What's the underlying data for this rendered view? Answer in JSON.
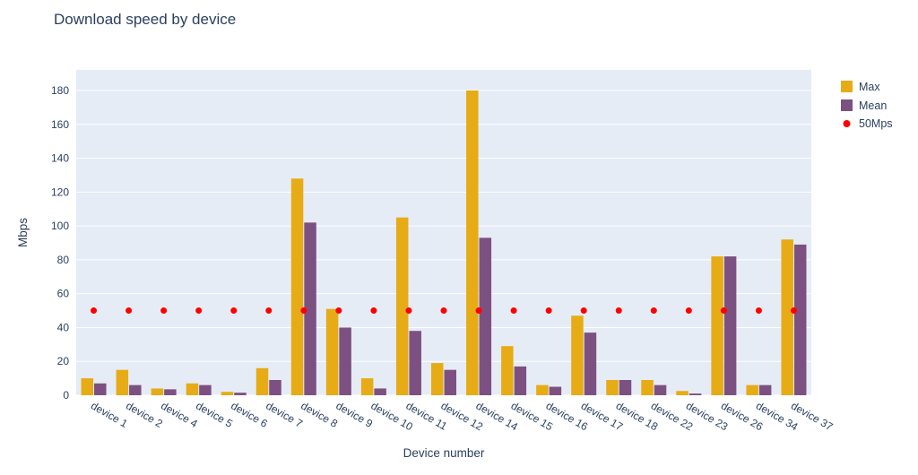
{
  "chart_data": {
    "type": "bar",
    "title": "Download speed by device",
    "xlabel": "Device number",
    "ylabel": "Mbps",
    "ylim": [
      0,
      180
    ],
    "yticks": [
      0,
      20,
      40,
      60,
      80,
      100,
      120,
      140,
      160,
      180
    ],
    "grid": true,
    "legend_position": "top-right-outside",
    "plot_bg": "#e5ecf6",
    "grid_color": "#ffffff",
    "text_color": "#2a3f5f",
    "categories": [
      "device 1",
      "device 2",
      "device 4",
      "device 5",
      "device 6",
      "device 7",
      "device 8",
      "device 9",
      "device 10",
      "device 11",
      "device 12",
      "device 14",
      "device 15",
      "device 16",
      "device 17",
      "device 18",
      "device 22",
      "device 23",
      "device 26",
      "device 34",
      "device 37"
    ],
    "series": [
      {
        "name": "Max",
        "color": "#e7ab15",
        "values": [
          10,
          15,
          4,
          7,
          2,
          16,
          128,
          51,
          10,
          105,
          19,
          180,
          29,
          6,
          47,
          9,
          9,
          2.5,
          82,
          6,
          92
        ]
      },
      {
        "name": "Mean",
        "color": "#7c5182",
        "values": [
          7,
          6,
          3.5,
          6,
          1.5,
          9,
          102,
          40,
          4,
          38,
          15,
          93,
          17,
          5,
          37,
          9,
          6,
          1,
          82,
          6,
          89
        ]
      }
    ],
    "reference_line": {
      "name": "50Mps",
      "value": 50,
      "color": "#ff0000",
      "style": "dots"
    }
  }
}
